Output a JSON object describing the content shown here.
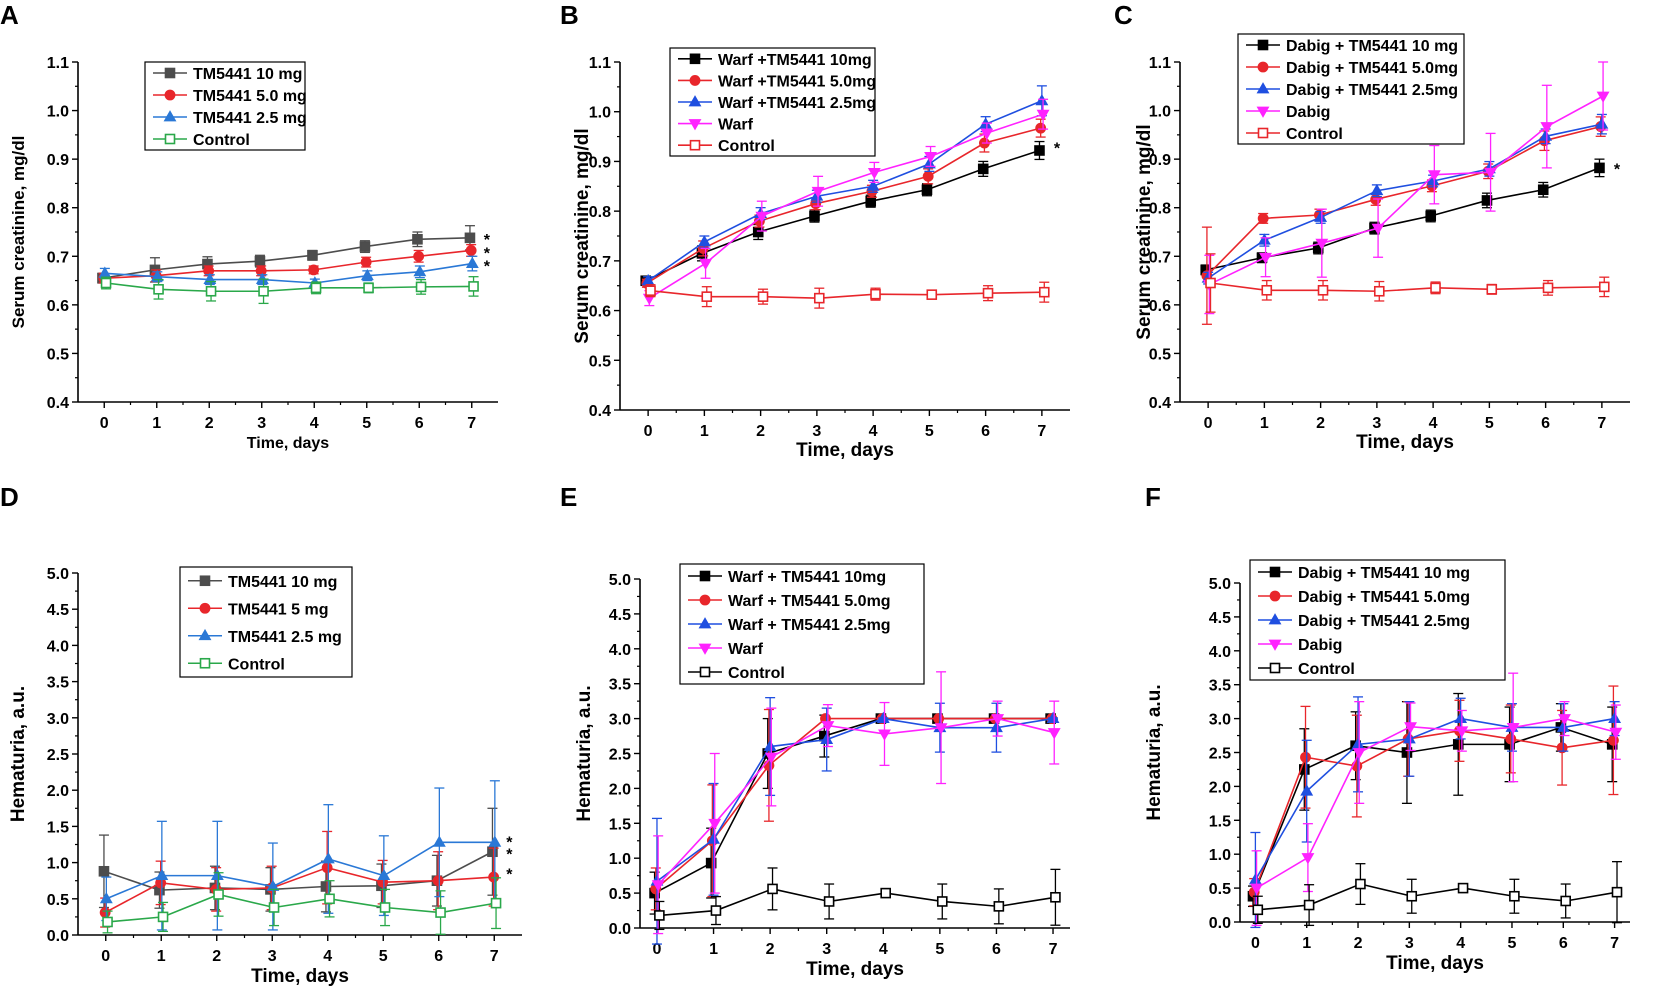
{
  "figure": {
    "colors": {
      "black": "#000000",
      "gray": "#4d4d4d",
      "red": "#e8262b",
      "blue": "#1f4fe0",
      "blue_light": "#2a78d6",
      "green": "#2aa84a",
      "magenta": "#ff22ff"
    }
  },
  "chart_data": [
    {
      "panel_label": "A",
      "type": "line",
      "title": "",
      "xlabel": "Time, days",
      "ylabel": "Serum creatinine, mg/dl",
      "x": [
        0,
        1,
        2,
        3,
        4,
        5,
        6,
        7
      ],
      "xlim": [
        -0.5,
        7.5
      ],
      "ylim": [
        0.4,
        1.1
      ],
      "xticks": [
        "0",
        "1",
        "2",
        "3",
        "4",
        "5",
        "6",
        "7"
      ],
      "yticks": [
        "0.4",
        "0.5",
        "0.6",
        "0.7",
        "0.8",
        "0.9",
        "1.0",
        "1.1"
      ],
      "legend_position": "top-left",
      "series": [
        {
          "name": "TM5441 10 mg",
          "color": "#4d4d4d",
          "marker": "square",
          "filled": true,
          "values": [
            0.655,
            0.672,
            0.684,
            0.69,
            0.702,
            0.72,
            0.735,
            0.738
          ],
          "errors": [
            0.01,
            0.025,
            0.015,
            0.012,
            0.01,
            0.012,
            0.015,
            0.025
          ]
        },
        {
          "name": "TM5441 5.0 mg",
          "color": "#e8262b",
          "marker": "circle",
          "filled": true,
          "values": [
            0.655,
            0.66,
            0.67,
            0.67,
            0.672,
            0.688,
            0.7,
            0.712
          ],
          "errors": [
            0.01,
            0.012,
            0.01,
            0.01,
            0.008,
            0.01,
            0.012,
            0.012
          ]
        },
        {
          "name": "TM5441 2.5 mg",
          "color": "#2a78d6",
          "marker": "triangle",
          "filled": true,
          "values": [
            0.665,
            0.658,
            0.652,
            0.652,
            0.645,
            0.66,
            0.668,
            0.685
          ],
          "errors": [
            0.01,
            0.01,
            0.01,
            0.01,
            0.008,
            0.01,
            0.012,
            0.015
          ]
        },
        {
          "name": "Control",
          "color": "#2aa84a",
          "marker": "square",
          "filled": false,
          "values": [
            0.645,
            0.632,
            0.628,
            0.628,
            0.635,
            0.635,
            0.637,
            0.638
          ],
          "errors": [
            0.012,
            0.02,
            0.02,
            0.025,
            0.012,
            0.01,
            0.015,
            0.02
          ]
        }
      ],
      "annotations": [
        {
          "x": 7,
          "y": 0.74,
          "text": "*"
        },
        {
          "x": 7,
          "y": 0.712,
          "text": "*"
        },
        {
          "x": 7,
          "y": 0.685,
          "text": "*"
        }
      ]
    },
    {
      "panel_label": "B",
      "type": "line",
      "title": "",
      "xlabel": "Time, days",
      "ylabel": "Serum creatinine, mg/dl",
      "x": [
        0,
        1,
        2,
        3,
        4,
        5,
        6,
        7
      ],
      "xlim": [
        -0.5,
        7.5
      ],
      "ylim": [
        0.4,
        1.1
      ],
      "xticks": [
        "0",
        "1",
        "2",
        "3",
        "4",
        "5",
        "6",
        "7"
      ],
      "yticks": [
        "0.4",
        "0.5",
        "0.6",
        "0.7",
        "0.8",
        "0.9",
        "1.0",
        "1.1"
      ],
      "legend_position": "top-left",
      "series": [
        {
          "name": "Warf +TM5441 10mg",
          "color": "#000000",
          "marker": "square",
          "filled": true,
          "values": [
            0.66,
            0.715,
            0.758,
            0.79,
            0.82,
            0.843,
            0.885,
            0.922
          ],
          "errors": [
            0.008,
            0.015,
            0.015,
            0.012,
            0.012,
            0.012,
            0.015,
            0.018
          ]
        },
        {
          "name": "Warf +TM5441 5.0mg",
          "color": "#e8262b",
          "marker": "circle",
          "filled": true,
          "values": [
            0.655,
            0.725,
            0.78,
            0.815,
            0.84,
            0.87,
            0.937,
            0.967
          ],
          "errors": [
            0.008,
            0.015,
            0.012,
            0.012,
            0.012,
            0.015,
            0.018,
            0.018
          ]
        },
        {
          "name": "Warf +TM5441  2.5mg",
          "color": "#1f4fe0",
          "marker": "triangle",
          "filled": true,
          "values": [
            0.66,
            0.738,
            0.795,
            0.83,
            0.85,
            0.895,
            0.975,
            1.022
          ],
          "errors": [
            0.008,
            0.012,
            0.012,
            0.012,
            0.012,
            0.015,
            0.015,
            0.03
          ]
        },
        {
          "name": "Warf",
          "color": "#ff22ff",
          "marker": "triangle-down",
          "filled": true,
          "values": [
            0.625,
            0.695,
            0.79,
            0.84,
            0.878,
            0.91,
            0.957,
            0.995
          ],
          "errors": [
            0.015,
            0.03,
            0.03,
            0.03,
            0.02,
            0.02,
            0.02,
            0.03
          ]
        },
        {
          "name": "Control",
          "color": "#e8262b",
          "marker": "square",
          "filled": false,
          "values": [
            0.64,
            0.628,
            0.628,
            0.625,
            0.633,
            0.632,
            0.635,
            0.637
          ],
          "errors": [
            0.012,
            0.02,
            0.015,
            0.02,
            0.012,
            0.008,
            0.015,
            0.02
          ]
        }
      ],
      "annotations": [
        {
          "x": 7,
          "y": 0.932,
          "text": "*"
        }
      ]
    },
    {
      "panel_label": "C",
      "type": "line",
      "title": "",
      "xlabel": "Time, days",
      "ylabel": "Serum creatinine, mg/dl",
      "x": [
        0,
        1,
        2,
        3,
        4,
        5,
        6,
        7
      ],
      "xlim": [
        -0.5,
        7.5
      ],
      "ylim": [
        0.4,
        1.1
      ],
      "xticks": [
        "0",
        "1",
        "2",
        "3",
        "4",
        "5",
        "6",
        "7"
      ],
      "yticks": [
        "0.4",
        "0.5",
        "0.6",
        "0.7",
        "0.8",
        "0.9",
        "1.0",
        "1.1"
      ],
      "legend_position": "top-left",
      "series": [
        {
          "name": "Dabig + TM5441 10 mg",
          "color": "#000000",
          "marker": "square",
          "filled": true,
          "values": [
            0.672,
            0.697,
            0.717,
            0.758,
            0.783,
            0.815,
            0.837,
            0.882
          ],
          "errors": [
            0.01,
            0.01,
            0.012,
            0.012,
            0.012,
            0.015,
            0.015,
            0.018
          ]
        },
        {
          "name": "Dabig + TM5441 5.0mg",
          "color": "#e8262b",
          "marker": "circle",
          "filled": true,
          "values": [
            0.66,
            0.778,
            0.785,
            0.817,
            0.845,
            0.875,
            0.938,
            0.967
          ],
          "errors": [
            0.1,
            0.01,
            0.012,
            0.012,
            0.012,
            0.015,
            0.02,
            0.02
          ]
        },
        {
          "name": "Dabig + TM5441 2.5mg",
          "color": "#1f4fe0",
          "marker": "triangle",
          "filled": true,
          "values": [
            0.655,
            0.733,
            0.78,
            0.835,
            0.855,
            0.88,
            0.947,
            0.972
          ],
          "errors": [
            0.012,
            0.012,
            0.012,
            0.012,
            0.012,
            0.015,
            0.015,
            0.02
          ]
        },
        {
          "name": "Dabig",
          "color": "#ff22ff",
          "marker": "triangle-down",
          "filled": true,
          "values": [
            0.642,
            0.698,
            0.727,
            0.758,
            0.868,
            0.873,
            0.967,
            1.03
          ],
          "errors": [
            0.06,
            0.04,
            0.07,
            0.06,
            0.06,
            0.08,
            0.085,
            0.07
          ]
        },
        {
          "name": "Control",
          "color": "#e8262b",
          "marker": "square",
          "filled": false,
          "values": [
            0.645,
            0.63,
            0.63,
            0.628,
            0.635,
            0.632,
            0.635,
            0.637
          ],
          "errors": [
            0.06,
            0.02,
            0.02,
            0.02,
            0.012,
            0.01,
            0.015,
            0.02
          ]
        }
      ],
      "annotations": [
        {
          "x": 7,
          "y": 0.885,
          "text": "*"
        }
      ]
    },
    {
      "panel_label": "D",
      "type": "line",
      "title": "",
      "xlabel": "Time, days",
      "ylabel": "Hematuria, a.u.",
      "x": [
        0,
        1,
        2,
        3,
        4,
        5,
        6,
        7
      ],
      "xlim": [
        -0.5,
        7.5
      ],
      "ylim": [
        0,
        5
      ],
      "xticks": [
        "0",
        "1",
        "2",
        "3",
        "4",
        "5",
        "6",
        "7"
      ],
      "yticks": [
        "0.0",
        "0.5",
        "1.0",
        "1.5",
        "2.0",
        "2.5",
        "3.0",
        "3.5",
        "4.0",
        "4.5",
        "5.0"
      ],
      "legend_position": "top-center",
      "series": [
        {
          "name": "TM5441 10 mg",
          "color": "#4d4d4d",
          "marker": "square",
          "filled": true,
          "values": [
            0.88,
            0.62,
            0.65,
            0.63,
            0.67,
            0.68,
            0.75,
            1.15
          ],
          "errors": [
            0.5,
            0.25,
            0.3,
            0.3,
            0.35,
            0.3,
            0.35,
            0.6
          ]
        },
        {
          "name": "TM5441 5 mg",
          "color": "#e8262b",
          "marker": "circle",
          "filled": true,
          "values": [
            0.31,
            0.72,
            0.63,
            0.65,
            0.93,
            0.73,
            0.75,
            0.8
          ],
          "errors": [
            0.2,
            0.3,
            0.3,
            0.3,
            0.5,
            0.3,
            0.4,
            0.4
          ]
        },
        {
          "name": "TM5441 2.5 mg",
          "color": "#2a78d6",
          "marker": "triangle",
          "filled": true,
          "values": [
            0.5,
            0.82,
            0.82,
            0.67,
            1.05,
            0.82,
            1.28,
            1.28
          ],
          "errors": [
            0.3,
            0.75,
            0.75,
            0.6,
            0.75,
            0.55,
            0.75,
            0.85
          ]
        },
        {
          "name": "Control",
          "color": "#2aa84a",
          "marker": "square",
          "filled": false,
          "values": [
            0.18,
            0.25,
            0.56,
            0.38,
            0.5,
            0.38,
            0.31,
            0.44
          ],
          "errors": [
            0.15,
            0.2,
            0.3,
            0.25,
            0.25,
            0.25,
            0.3,
            0.35
          ]
        }
      ],
      "annotations": [
        {
          "x": 7,
          "y": 1.32,
          "text": "*"
        },
        {
          "x": 7,
          "y": 1.15,
          "text": "*"
        },
        {
          "x": 7,
          "y": 0.88,
          "text": "*"
        }
      ]
    },
    {
      "panel_label": "E",
      "type": "line",
      "title": "",
      "xlabel": "Time, days",
      "ylabel": "Hematuria, a.u.",
      "x": [
        0,
        1,
        2,
        3,
        4,
        5,
        6,
        7
      ],
      "xlim": [
        -0.3,
        7.3
      ],
      "ylim": [
        0,
        5
      ],
      "xticks": [
        "0",
        "1",
        "2",
        "3",
        "4",
        "5",
        "6",
        "7"
      ],
      "yticks": [
        "0.0",
        "0.5",
        "1.0",
        "1.5",
        "2.0",
        "2.5",
        "3.0",
        "3.5",
        "4.0",
        "4.5",
        "5.0"
      ],
      "legend_position": "top-left",
      "series": [
        {
          "name": "Warf + TM5441 10mg",
          "color": "#000000",
          "marker": "square",
          "filled": true,
          "values": [
            0.5,
            0.93,
            2.5,
            2.75,
            3.0,
            3.0,
            3.0,
            3.0
          ],
          "errors": [
            0.3,
            0.5,
            0.5,
            0.3,
            0.01,
            0.01,
            0.01,
            0.01
          ]
        },
        {
          "name": "Warf + TM5441 5.0mg",
          "color": "#e8262b",
          "marker": "circle",
          "filled": true,
          "values": [
            0.56,
            1.25,
            2.33,
            3.0,
            3.0,
            3.0,
            3.0,
            3.0
          ],
          "errors": [
            0.3,
            0.8,
            0.8,
            0.01,
            0.01,
            0.01,
            0.01,
            0.01
          ]
        },
        {
          "name": "Warf + TM5441 2.5mg",
          "color": "#1f4fe0",
          "marker": "triangle",
          "filled": true,
          "values": [
            0.67,
            1.27,
            2.6,
            2.7,
            3.0,
            2.87,
            2.87,
            3.0
          ],
          "errors": [
            0.9,
            0.8,
            0.7,
            0.45,
            0.01,
            0.35,
            0.35,
            0.01
          ]
        },
        {
          "name": "Warf",
          "color": "#ff22ff",
          "marker": "triangle-down",
          "filled": true,
          "values": [
            0.62,
            1.5,
            2.45,
            2.9,
            2.78,
            2.87,
            3.0,
            2.8
          ],
          "errors": [
            0.7,
            1.0,
            0.7,
            0.3,
            0.45,
            0.8,
            0.25,
            0.45
          ]
        },
        {
          "name": "Control",
          "color": "#000000",
          "marker": "square",
          "filled": false,
          "values": [
            0.18,
            0.25,
            0.56,
            0.38,
            0.5,
            0.38,
            0.31,
            0.44
          ],
          "errors": [
            0.2,
            0.2,
            0.3,
            0.25,
            0.01,
            0.25,
            0.25,
            0.4
          ]
        }
      ],
      "annotations": []
    },
    {
      "panel_label": "F",
      "type": "line",
      "title": "",
      "xlabel": "Time, days",
      "ylabel": "Hematuria, a.u.",
      "x": [
        0,
        1,
        2,
        3,
        4,
        5,
        6,
        7
      ],
      "xlim": [
        -0.3,
        7.3
      ],
      "ylim": [
        0,
        5
      ],
      "xticks": [
        "0",
        "1",
        "2",
        "3",
        "4",
        "5",
        "6",
        "7"
      ],
      "yticks": [
        "0.0",
        "0.5",
        "1.0",
        "1.5",
        "2.0",
        "2.5",
        "3.0",
        "3.5",
        "4.0",
        "4.5",
        "5.0"
      ],
      "legend_position": "top-left",
      "series": [
        {
          "name": "Dabig + TM5441 10 mg",
          "color": "#000000",
          "marker": "square",
          "filled": true,
          "values": [
            0.38,
            2.25,
            2.6,
            2.5,
            2.62,
            2.62,
            2.87,
            2.62
          ],
          "errors": [
            0.15,
            0.6,
            0.5,
            0.75,
            0.75,
            0.55,
            0.35,
            0.55
          ]
        },
        {
          "name": "Dabig + TM5441 5.0mg",
          "color": "#e8262b",
          "marker": "circle",
          "filled": true,
          "values": [
            0.44,
            2.43,
            2.3,
            2.7,
            2.82,
            2.7,
            2.57,
            2.68
          ],
          "errors": [
            0.2,
            0.75,
            0.75,
            0.55,
            0.45,
            0.5,
            0.55,
            0.8
          ]
        },
        {
          "name": "Dabig + TM5441 2.5mg",
          "color": "#1f4fe0",
          "marker": "triangle",
          "filled": true,
          "values": [
            0.62,
            1.93,
            2.62,
            2.7,
            3.0,
            2.87,
            2.87,
            3.0
          ],
          "errors": [
            0.7,
            0.75,
            0.7,
            0.55,
            0.3,
            0.35,
            0.35,
            0.25
          ]
        },
        {
          "name": "Dabig",
          "color": "#ff22ff",
          "marker": "triangle-down",
          "filled": true,
          "values": [
            0.5,
            0.95,
            2.5,
            2.88,
            2.82,
            2.87,
            3.0,
            2.8
          ],
          "errors": [
            0.55,
            0.5,
            0.75,
            0.35,
            0.3,
            0.8,
            0.25,
            0.4
          ]
        },
        {
          "name": "Control",
          "color": "#000000",
          "marker": "square",
          "filled": false,
          "values": [
            0.18,
            0.25,
            0.56,
            0.38,
            0.5,
            0.38,
            0.31,
            0.44
          ],
          "errors": [
            0.2,
            0.3,
            0.3,
            0.25,
            0.01,
            0.25,
            0.25,
            0.45
          ]
        }
      ],
      "annotations": []
    }
  ]
}
